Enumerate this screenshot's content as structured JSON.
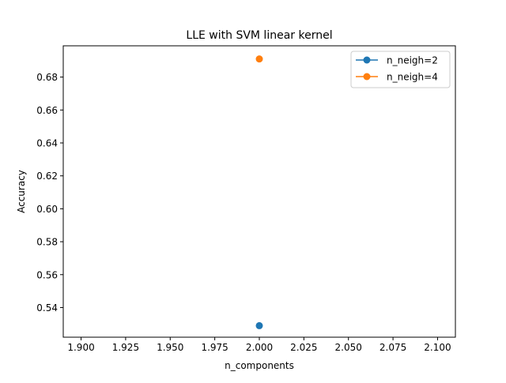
{
  "chart_data": {
    "type": "line",
    "title": "LLE with SVM linear kernel",
    "xlabel": "n_components",
    "ylabel": "Accuracy",
    "xlim": [
      1.89,
      2.11
    ],
    "ylim": [
      0.522,
      0.699
    ],
    "xticks": [
      "1.900",
      "1.925",
      "1.950",
      "1.975",
      "2.000",
      "2.025",
      "2.050",
      "2.075",
      "2.100"
    ],
    "yticks": [
      "0.54",
      "0.56",
      "0.58",
      "0.60",
      "0.62",
      "0.64",
      "0.66",
      "0.68"
    ],
    "grid": false,
    "legend_position": "top-right",
    "series": [
      {
        "name": "n_neigh=2",
        "color": "#1f77b4",
        "marker": "circle",
        "x": [
          2
        ],
        "y": [
          0.529
        ]
      },
      {
        "name": "n_neigh=4",
        "color": "#ff7f0e",
        "marker": "circle",
        "x": [
          2
        ],
        "y": [
          0.691
        ]
      }
    ]
  }
}
